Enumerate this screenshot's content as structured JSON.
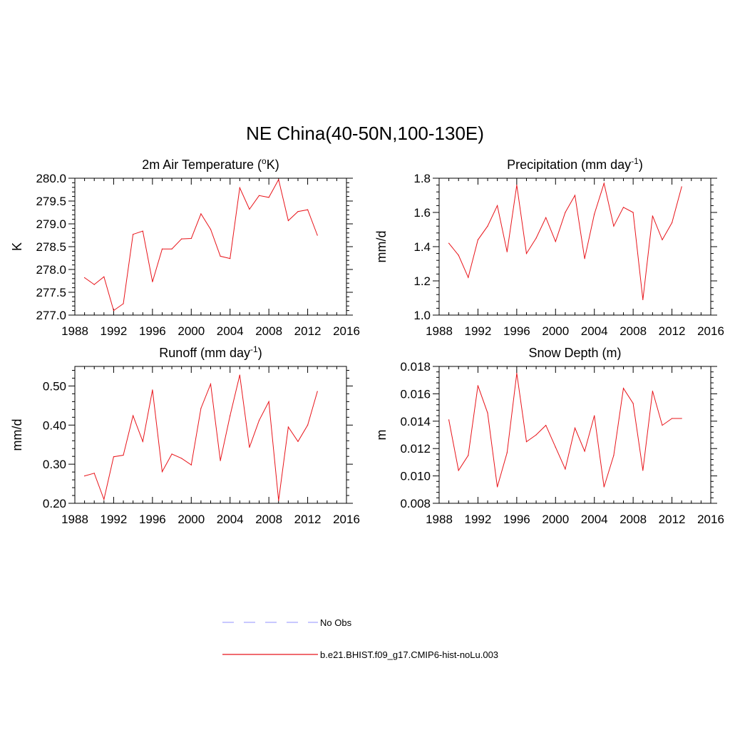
{
  "figure": {
    "title": "NE China(40-50N,100-130E)"
  },
  "legend": {
    "placement": "bottom-center",
    "entries": [
      {
        "label": "No Obs",
        "color": "#a8a8ff",
        "dash": "dashed"
      },
      {
        "label": "b.e21.BHIST.f09_g17.CMIP6-hist-noLu.003",
        "color": "#e8141a",
        "dash": "solid"
      }
    ]
  },
  "chart_data": [
    {
      "type": "line",
      "title": "2m Air Temperature (",
      "title_sup": "o",
      "title_after": "K)",
      "xlabel": "",
      "ylabel": "K",
      "xlim": [
        1988,
        2016
      ],
      "ylim": [
        277.0,
        280.0
      ],
      "xticks": [
        1988,
        1992,
        1996,
        2000,
        2004,
        2008,
        2012,
        2016
      ],
      "yticks": [
        277.0,
        277.5,
        278.0,
        278.5,
        279.0,
        279.5,
        280.0
      ],
      "ytick_labels": [
        "277.0",
        "277.5",
        "278.0",
        "278.5",
        "279.0",
        "279.5",
        "280.0"
      ],
      "x": [
        1989,
        1990,
        1991,
        1992,
        1993,
        1994,
        1995,
        1996,
        1997,
        1998,
        1999,
        2000,
        2001,
        2002,
        2003,
        2004,
        2005,
        2006,
        2007,
        2008,
        2009,
        2010,
        2011,
        2012,
        2013
      ],
      "series": [
        {
          "color": "#e8141a",
          "values": [
            277.82,
            277.67,
            277.84,
            277.1,
            277.25,
            278.77,
            278.84,
            277.73,
            278.45,
            278.45,
            278.67,
            278.68,
            279.22,
            278.88,
            278.29,
            278.24,
            279.79,
            279.32,
            279.62,
            279.58,
            279.97,
            279.07,
            279.27,
            279.31,
            278.75
          ]
        }
      ]
    },
    {
      "type": "line",
      "title": "Precipitation (mm day",
      "title_sup": "-1",
      "title_after": ")",
      "xlabel": "",
      "ylabel": "mm/d",
      "xlim": [
        1988,
        2016
      ],
      "ylim": [
        1.0,
        1.8
      ],
      "xticks": [
        1988,
        1992,
        1996,
        2000,
        2004,
        2008,
        2012,
        2016
      ],
      "yticks": [
        1.0,
        1.2,
        1.4,
        1.6,
        1.8
      ],
      "ytick_labels": [
        "1.0",
        "1.2",
        "1.4",
        "1.6",
        "1.8"
      ],
      "x": [
        1989,
        1990,
        1991,
        1992,
        1993,
        1994,
        1995,
        1996,
        1997,
        1998,
        1999,
        2000,
        2001,
        2002,
        2003,
        2004,
        2005,
        2006,
        2007,
        2008,
        2009,
        2010,
        2011,
        2012,
        2013
      ],
      "series": [
        {
          "color": "#e8141a",
          "values": [
            1.42,
            1.35,
            1.22,
            1.44,
            1.52,
            1.64,
            1.37,
            1.76,
            1.36,
            1.45,
            1.57,
            1.43,
            1.6,
            1.7,
            1.33,
            1.59,
            1.77,
            1.52,
            1.63,
            1.6,
            1.09,
            1.58,
            1.44,
            1.54,
            1.75
          ]
        }
      ]
    },
    {
      "type": "line",
      "title": "Runoff (mm day",
      "title_sup": "-1",
      "title_after": ")",
      "xlabel": "",
      "ylabel": "mm/d",
      "xlim": [
        1988,
        2016
      ],
      "ylim": [
        0.2,
        0.55
      ],
      "xticks": [
        1988,
        1992,
        1996,
        2000,
        2004,
        2008,
        2012,
        2016
      ],
      "yticks": [
        0.2,
        0.3,
        0.4,
        0.5
      ],
      "ytick_labels": [
        "0.20",
        "0.30",
        "0.40",
        "0.50"
      ],
      "x": [
        1989,
        1990,
        1991,
        1992,
        1993,
        1994,
        1995,
        1996,
        1997,
        1998,
        1999,
        2000,
        2001,
        2002,
        2003,
        2004,
        2005,
        2006,
        2007,
        2008,
        2009,
        2010,
        2011,
        2012,
        2013
      ],
      "series": [
        {
          "color": "#e8141a",
          "values": [
            0.27,
            0.277,
            0.21,
            0.319,
            0.323,
            0.424,
            0.358,
            0.49,
            0.281,
            0.326,
            0.315,
            0.298,
            0.443,
            0.505,
            0.309,
            0.424,
            0.528,
            0.343,
            0.412,
            0.46,
            0.207,
            0.395,
            0.358,
            0.4,
            0.486
          ]
        }
      ]
    },
    {
      "type": "line",
      "title": "Snow Depth (m)",
      "title_sup": "",
      "title_after": "",
      "xlabel": "",
      "ylabel": "m",
      "xlim": [
        1988,
        2016
      ],
      "ylim": [
        0.008,
        0.018
      ],
      "xticks": [
        1988,
        1992,
        1996,
        2000,
        2004,
        2008,
        2012,
        2016
      ],
      "yticks": [
        0.008,
        0.01,
        0.012,
        0.014,
        0.016,
        0.018
      ],
      "ytick_labels": [
        "0.008",
        "0.010",
        "0.012",
        "0.014",
        "0.016",
        "0.018"
      ],
      "x": [
        1989,
        1990,
        1991,
        1992,
        1993,
        1994,
        1995,
        1996,
        1997,
        1998,
        1999,
        2000,
        2001,
        2002,
        2003,
        2004,
        2005,
        2006,
        2007,
        2008,
        2009,
        2010,
        2011,
        2012,
        2013
      ],
      "series": [
        {
          "color": "#e8141a",
          "values": [
            0.0141,
            0.0104,
            0.0115,
            0.0166,
            0.0146,
            0.0092,
            0.0117,
            0.0175,
            0.0125,
            0.013,
            0.0137,
            0.0121,
            0.0105,
            0.0135,
            0.0118,
            0.0144,
            0.0092,
            0.0115,
            0.0164,
            0.0153,
            0.0104,
            0.0162,
            0.0137,
            0.0142,
            0.0142
          ]
        }
      ]
    }
  ]
}
